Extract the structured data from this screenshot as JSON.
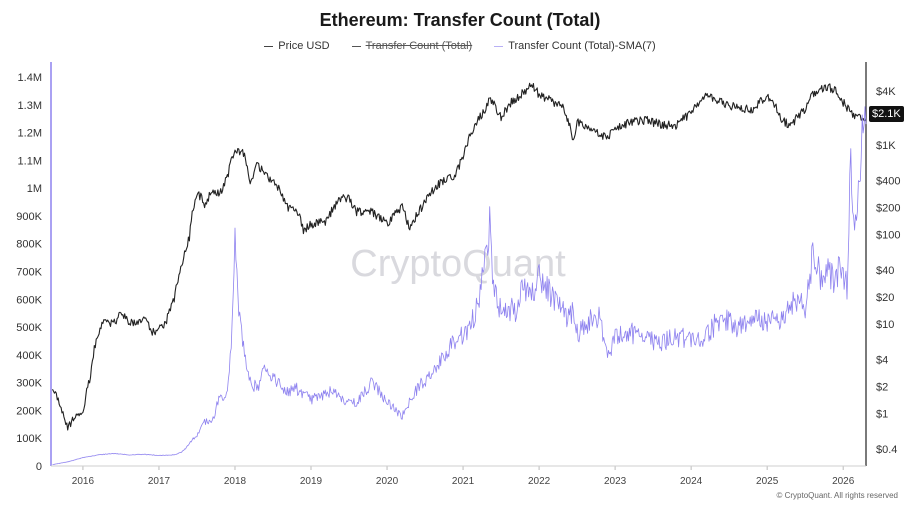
{
  "legend": {
    "price_label": "Price USD",
    "transfer_label": "Transfer Count (Total)",
    "sma_label": "Transfer Count (Total)-SMA(7)"
  },
  "watermark": "CryptoQuant",
  "copyright": "© CryptoQuant. All rights reserved",
  "last_price_badge": "$2.1K",
  "chart_data": {
    "type": "line",
    "title": "Ethereum: Transfer Count (Total)",
    "x_ticks": [
      "2016",
      "2017",
      "2018",
      "2019",
      "2020",
      "2021",
      "2022",
      "2023",
      "2024",
      "2025",
      "2026"
    ],
    "xlim": [
      "2015-08",
      "2026-04"
    ],
    "left_axis": {
      "ticks": [
        "1.4M",
        "1.3M",
        "1.2M",
        "1.1M",
        "1M",
        "900K",
        "800K",
        "700K",
        "600K",
        "500K",
        "400K",
        "300K",
        "200K",
        "100K",
        "0"
      ],
      "ylim": [
        0,
        1400000
      ]
    },
    "right_axis": {
      "scale": "log",
      "ticks": [
        "$4K",
        "$1K",
        "$400",
        "$200",
        "$100",
        "$40",
        "$20",
        "$10",
        "$4",
        "$2",
        "$1",
        "$0.4"
      ]
    },
    "series": [
      {
        "name": "Price USD",
        "axis": "right",
        "color": "#222222",
        "x": [
          2015.6,
          2015.7,
          2015.8,
          2015.9,
          2016.0,
          2016.1,
          2016.2,
          2016.3,
          2016.4,
          2016.5,
          2016.6,
          2016.7,
          2016.8,
          2016.9,
          2017.0,
          2017.1,
          2017.2,
          2017.3,
          2017.4,
          2017.5,
          2017.6,
          2017.7,
          2017.8,
          2017.9,
          2018.0,
          2018.1,
          2018.2,
          2018.3,
          2018.4,
          2018.5,
          2018.6,
          2018.7,
          2018.8,
          2018.9,
          2019.0,
          2019.2,
          2019.4,
          2019.5,
          2019.6,
          2019.8,
          2020.0,
          2020.2,
          2020.3,
          2020.5,
          2020.7,
          2020.9,
          2021.0,
          2021.2,
          2021.3,
          2021.35,
          2021.5,
          2021.6,
          2021.8,
          2021.9,
          2022.0,
          2022.2,
          2022.3,
          2022.45,
          2022.5,
          2022.6,
          2022.8,
          2022.9,
          2023.0,
          2023.2,
          2023.4,
          2023.6,
          2023.8,
          2024.0,
          2024.2,
          2024.4,
          2024.6,
          2024.8,
          2025.0,
          2025.2,
          2025.3,
          2025.5,
          2025.6,
          2025.8,
          2025.9,
          2026.0,
          2026.1,
          2026.2,
          2026.3
        ],
        "values": [
          2.0,
          1.2,
          0.7,
          0.9,
          1.0,
          2.5,
          8.0,
          11.0,
          10.0,
          13.0,
          11.0,
          10.0,
          12.0,
          8.0,
          8.5,
          11.0,
          19.0,
          45.0,
          90.0,
          300.0,
          220.0,
          300.0,
          280.0,
          430.0,
          900.0,
          850.0,
          400.0,
          600.0,
          450.0,
          400.0,
          300.0,
          200.0,
          200.0,
          110.0,
          130.0,
          140.0,
          260.0,
          250.0,
          180.0,
          180.0,
          130.0,
          200.0,
          110.0,
          230.0,
          380.0,
          450.0,
          750.0,
          1900.0,
          2500.0,
          3400.0,
          2000.0,
          2800.0,
          3900.0,
          4600.0,
          3700.0,
          3000.0,
          2800.0,
          1100.0,
          1800.0,
          1600.0,
          1300.0,
          1200.0,
          1550.0,
          1800.0,
          1900.0,
          1700.0,
          1650.0,
          2300.0,
          3500.0,
          3000.0,
          2600.0,
          2500.0,
          3600.0,
          1900.0,
          1600.0,
          2500.0,
          3700.0,
          4500.0,
          4000.0,
          3000.0,
          2300.0,
          2000.0,
          2100.0
        ]
      },
      {
        "name": "Transfer Count (Total)",
        "axis": "left",
        "hidden": true,
        "color": "#333333",
        "values": []
      },
      {
        "name": "Transfer Count (Total)-SMA(7)",
        "axis": "left",
        "color": "#8e82ef",
        "x": [
          2015.6,
          2015.8,
          2016.0,
          2016.2,
          2016.4,
          2016.6,
          2016.8,
          2017.0,
          2017.2,
          2017.3,
          2017.4,
          2017.5,
          2017.6,
          2017.7,
          2017.8,
          2017.9,
          2017.95,
          2018.0,
          2018.05,
          2018.1,
          2018.2,
          2018.3,
          2018.4,
          2018.5,
          2018.7,
          2018.8,
          2019.0,
          2019.2,
          2019.3,
          2019.4,
          2019.6,
          2019.8,
          2020.0,
          2020.2,
          2020.4,
          2020.6,
          2020.8,
          2021.0,
          2021.1,
          2021.2,
          2021.3,
          2021.35,
          2021.4,
          2021.5,
          2021.7,
          2021.8,
          2021.9,
          2022.0,
          2022.2,
          2022.4,
          2022.45,
          2022.5,
          2022.6,
          2022.7,
          2022.8,
          2022.9,
          2023.0,
          2023.2,
          2023.4,
          2023.6,
          2023.8,
          2024.0,
          2024.2,
          2024.4,
          2024.6,
          2024.8,
          2025.0,
          2025.2,
          2025.4,
          2025.5,
          2025.6,
          2025.7,
          2025.8,
          2025.9,
          2025.95,
          2026.0,
          2026.05,
          2026.1,
          2026.15,
          2026.2,
          2026.25,
          2026.3
        ],
        "values": [
          5000,
          15000,
          30000,
          40000,
          45000,
          40000,
          42000,
          38000,
          40000,
          50000,
          80000,
          110000,
          160000,
          160000,
          250000,
          260000,
          450000,
          800000,
          550000,
          450000,
          300000,
          280000,
          360000,
          320000,
          260000,
          280000,
          240000,
          260000,
          280000,
          240000,
          230000,
          300000,
          230000,
          180000,
          280000,
          340000,
          420000,
          470000,
          500000,
          600000,
          750000,
          880000,
          640000,
          560000,
          560000,
          650000,
          620000,
          690000,
          590000,
          520000,
          580000,
          480000,
          500000,
          540000,
          530000,
          400000,
          460000,
          480000,
          450000,
          450000,
          460000,
          460000,
          470000,
          540000,
          500000,
          530000,
          520000,
          530000,
          600000,
          560000,
          760000,
          690000,
          700000,
          660000,
          730000,
          700000,
          640000,
          1100000,
          860000,
          980000,
          1210000,
          1300000
        ]
      }
    ]
  }
}
